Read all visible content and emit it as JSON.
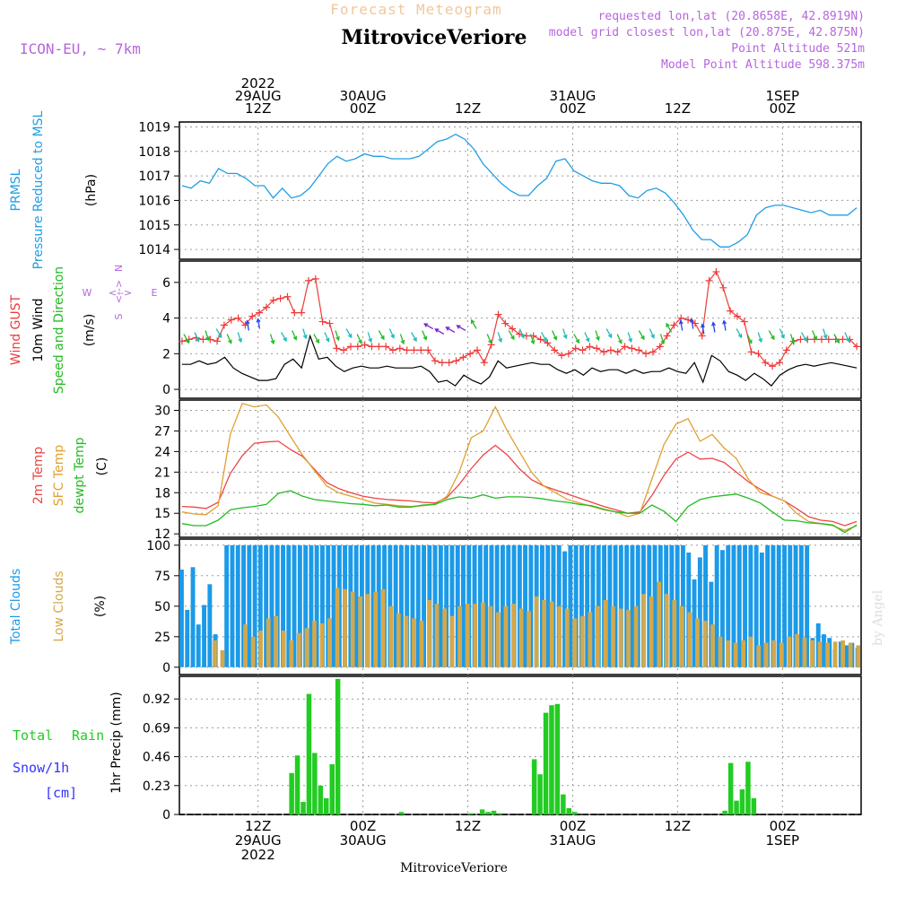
{
  "header": {
    "title": "Forecast Meteogram",
    "location": "MitroviceVeriore",
    "model": "ICON-EU, ~ 7km",
    "requested": "requested lon,lat (20.8658E, 42.8919N)",
    "closest": "model grid closest lon,lat (20.875E, 42.875N)",
    "point_alt": "Point Altitude 521m",
    "model_alt": "Model Point Altitude 598.375m",
    "footer_location": "MitroviceVeriore",
    "watermark": "by Angel"
  },
  "colors": {
    "pressure": "#1f9fe5",
    "gust": "#ee3a3a",
    "wind": "#000000",
    "direction": "#22bb22",
    "temp2m": "#ee4444",
    "sfc": "#e0a030",
    "dewpt": "#22bb22",
    "total_cloud": "#1b9ae8",
    "low_cloud": "#d4a84a",
    "rain": "#22cc22",
    "title": "#f0c89a",
    "meta": "#b666dd",
    "snow_label": "#3333ff"
  },
  "time_axis": {
    "top_labels": [
      {
        "t": 9,
        "lines": [
          "2022",
          "29AUG",
          "12Z"
        ]
      },
      {
        "t": 21,
        "lines": [
          "30AUG",
          "00Z"
        ]
      },
      {
        "t": 33,
        "lines": [
          "12Z"
        ]
      },
      {
        "t": 45,
        "lines": [
          "31AUG",
          "00Z"
        ]
      },
      {
        "t": 57,
        "lines": [
          "12Z"
        ]
      },
      {
        "t": 69,
        "lines": [
          "1SEP",
          "00Z"
        ]
      }
    ],
    "bottom_labels": [
      {
        "t": 9,
        "lines": [
          "12Z",
          "29AUG",
          "2022"
        ]
      },
      {
        "t": 21,
        "lines": [
          "00Z",
          "30AUG"
        ]
      },
      {
        "t": 33,
        "lines": [
          "12Z"
        ]
      },
      {
        "t": 45,
        "lines": [
          "00Z",
          "31AUG"
        ]
      },
      {
        "t": 57,
        "lines": [
          "12Z"
        ]
      },
      {
        "t": 69,
        "lines": [
          "00Z",
          "1SEP"
        ]
      }
    ]
  },
  "panels": {
    "pressure": {
      "labels": [
        "PRMSL",
        "Pressure Reduced to MSL"
      ],
      "unit": "(hPa)"
    },
    "wind": {
      "labels": [
        "Wind GUST",
        "10m Wind",
        "Speed and Direction"
      ],
      "unit": "(m/s)",
      "compass": {
        "n": "N",
        "s": "S",
        "w": "W",
        "e": "E"
      }
    },
    "temp": {
      "labels": [
        "2m Temp",
        "SFC Temp",
        "dewpt Temp"
      ],
      "unit": "(C)"
    },
    "cloud": {
      "labels": [
        "Total Clouds",
        "Low Clouds"
      ],
      "unit": "(%)"
    },
    "precip": {
      "labels": [
        "Total",
        "Rain",
        "Snow/1h",
        "[cm]"
      ],
      "unit": "1hr Precip (mm)"
    }
  },
  "chart_data": [
    {
      "type": "line",
      "name": "pressure",
      "ylim": [
        1013.6,
        1019.2
      ],
      "yticks": [
        1014,
        1015,
        1016,
        1017,
        1018,
        1019
      ],
      "ylabel": "Pressure Reduced to MSL (hPa)",
      "series": [
        {
          "name": "PRMSL",
          "values": [
            1016.6,
            1016.5,
            1016.8,
            1016.7,
            1017.3,
            1017.1,
            1017.1,
            1016.9,
            1016.6,
            1016.6,
            1016.1,
            1016.5,
            1016.1,
            1016.2,
            1016.5,
            1017.0,
            1017.5,
            1017.8,
            1017.6,
            1017.7,
            1017.9,
            1017.8,
            1017.8,
            1017.7,
            1017.7,
            1017.7,
            1017.8,
            1018.1,
            1018.4,
            1018.5,
            1018.7,
            1018.5,
            1018.1,
            1017.5,
            1017.1,
            1016.7,
            1016.4,
            1016.2,
            1016.2,
            1016.6,
            1016.9,
            1017.6,
            1017.7,
            1017.2,
            1017.0,
            1016.8,
            1016.7,
            1016.7,
            1016.6,
            1016.2,
            1016.1,
            1016.4,
            1016.5,
            1016.3,
            1015.9,
            1015.4,
            1014.8,
            1014.4,
            1014.4,
            1014.1,
            1014.1,
            1014.3,
            1014.6,
            1015.4,
            1015.7,
            1015.8,
            1015.8,
            1015.7,
            1015.6,
            1015.5,
            1015.6,
            1015.4,
            1015.4,
            1015.4,
            1015.7
          ]
        }
      ]
    },
    {
      "type": "line",
      "name": "wind",
      "ylim": [
        -0.5,
        7.2
      ],
      "yticks": [
        0,
        2,
        4,
        6
      ],
      "ylabel": "(m/s)",
      "series": [
        {
          "name": "Wind GUST",
          "values": [
            2.7,
            2.8,
            2.9,
            2.8,
            2.8,
            2.7,
            3.6,
            3.9,
            4.0,
            3.6,
            4.1,
            4.3,
            4.6,
            5.0,
            5.1,
            5.2,
            4.3,
            4.3,
            6.1,
            6.2,
            3.8,
            3.7,
            2.3,
            2.2,
            2.4,
            2.4,
            2.5,
            2.4,
            2.4,
            2.4,
            2.2,
            2.3,
            2.2,
            2.2,
            2.2,
            2.2,
            1.6,
            1.5,
            1.5,
            1.6,
            1.8,
            2.0,
            2.2,
            1.5,
            2.5,
            4.2,
            3.7,
            3.4,
            3.1,
            3.0,
            3.0,
            2.8,
            2.6,
            2.2,
            1.9,
            2.0,
            2.3,
            2.2,
            2.4,
            2.3,
            2.1,
            2.2,
            2.1,
            2.4,
            2.3,
            2.2,
            2.0,
            2.1,
            2.4,
            3.0,
            3.6,
            4.0,
            3.9,
            3.7,
            3.0,
            6.1,
            6.6,
            5.7,
            4.4,
            4.1,
            3.8,
            2.1,
            2.0,
            1.5,
            1.3,
            1.5,
            2.2,
            2.7,
            2.8,
            2.8,
            2.8,
            2.8,
            2.8,
            2.8,
            2.8,
            2.8,
            2.4
          ]
        },
        {
          "name": "10m Wind",
          "values": [
            1.4,
            1.4,
            1.6,
            1.4,
            1.5,
            1.8,
            1.2,
            0.9,
            0.7,
            0.5,
            0.5,
            0.6,
            1.4,
            1.7,
            1.2,
            3.0,
            1.7,
            1.8,
            1.3,
            1.0,
            1.2,
            1.3,
            1.2,
            1.2,
            1.3,
            1.2,
            1.2,
            1.2,
            1.3,
            1.0,
            0.4,
            0.5,
            0.2,
            0.8,
            0.5,
            0.3,
            0.7,
            1.6,
            1.2,
            1.3,
            1.4,
            1.5,
            1.4,
            1.4,
            1.1,
            0.9,
            1.1,
            0.8,
            1.2,
            1.0,
            1.1,
            1.1,
            0.9,
            1.1,
            0.9,
            1.0,
            1.0,
            1.2,
            1.0,
            0.9,
            1.5,
            0.4,
            1.9,
            1.6,
            1.0,
            0.8,
            0.5,
            0.9,
            0.6,
            0.2,
            0.8,
            1.1,
            1.3,
            1.4,
            1.3,
            1.4,
            1.5,
            1.4,
            1.3,
            1.2
          ]
        }
      ]
    },
    {
      "type": "line",
      "name": "temperature",
      "ylim": [
        11.5,
        31.5
      ],
      "yticks": [
        12,
        15,
        18,
        21,
        24,
        27,
        30
      ],
      "ylabel": "(C)",
      "series": [
        {
          "name": "2m Temp",
          "values": [
            16.0,
            15.9,
            15.7,
            16.6,
            20.8,
            23.4,
            25.2,
            25.4,
            25.5,
            24.3,
            23.3,
            21.4,
            19.5,
            18.6,
            18.0,
            17.5,
            17.2,
            17.0,
            16.9,
            16.8,
            16.6,
            16.5,
            17.3,
            19.2,
            21.5,
            23.5,
            24.9,
            23.5,
            21.5,
            19.9,
            19.0,
            18.4,
            17.8,
            17.2,
            16.6,
            16.0,
            15.5,
            15.0,
            15.2,
            17.6,
            20.5,
            22.9,
            23.9,
            22.9,
            23.0,
            22.4,
            21.0,
            19.6,
            18.5,
            17.5,
            16.8,
            15.7,
            14.5,
            14.0,
            13.8,
            13.2,
            13.8
          ]
        },
        {
          "name": "SFC Temp",
          "values": [
            15.2,
            14.9,
            14.8,
            16.1,
            26.5,
            31.0,
            30.5,
            30.8,
            29.0,
            26.2,
            23.5,
            21.2,
            19.0,
            18.0,
            17.5,
            17.0,
            16.5,
            16.3,
            16.1,
            16.0,
            16.1,
            16.3,
            17.5,
            21.0,
            26.0,
            27.0,
            30.5,
            27.0,
            24.0,
            21.0,
            19.0,
            18.0,
            17.0,
            16.5,
            16.0,
            15.5,
            15.2,
            14.5,
            15.0,
            20.0,
            25.0,
            28.0,
            28.8,
            25.5,
            26.5,
            24.5,
            23.0,
            20.0,
            18.0,
            17.5,
            16.8,
            15.0,
            13.8,
            13.5,
            13.2,
            12.5,
            13.2
          ]
        },
        {
          "name": "dewpt Temp",
          "values": [
            13.5,
            13.2,
            13.2,
            14.0,
            15.5,
            15.8,
            16.0,
            16.3,
            17.9,
            18.3,
            17.5,
            17.0,
            16.8,
            16.6,
            16.4,
            16.3,
            16.1,
            16.2,
            15.9,
            15.9,
            16.2,
            16.3,
            17.0,
            17.4,
            17.2,
            17.7,
            17.2,
            17.4,
            17.4,
            17.3,
            17.1,
            16.8,
            16.6,
            16.3,
            16.1,
            15.6,
            15.2,
            15.0,
            15.0,
            16.2,
            15.3,
            13.8,
            16.0,
            17.0,
            17.4,
            17.6,
            17.8,
            17.2,
            16.5,
            15.2,
            14.0,
            13.9,
            13.6,
            13.5,
            13.3,
            12.2,
            13.3
          ]
        }
      ]
    },
    {
      "type": "bar",
      "name": "clouds",
      "ylim": [
        -6,
        105
      ],
      "yticks": [
        0,
        25,
        50,
        75,
        100
      ],
      "ylabel": "(%)",
      "series": [
        {
          "name": "Total Clouds",
          "values": [
            80,
            47,
            82,
            35,
            51,
            68,
            27,
            0,
            100,
            100,
            100,
            100,
            100,
            100,
            100,
            100,
            100,
            100,
            100,
            100,
            100,
            100,
            100,
            100,
            100,
            100,
            100,
            100,
            100,
            100,
            100,
            100,
            100,
            100,
            100,
            100,
            100,
            100,
            100,
            100,
            100,
            100,
            100,
            100,
            100,
            100,
            100,
            100,
            100,
            100,
            100,
            100,
            100,
            100,
            100,
            100,
            100,
            100,
            100,
            100,
            100,
            100,
            100,
            100,
            100,
            100,
            100,
            100,
            95,
            100,
            100,
            100,
            100,
            100,
            100,
            100,
            100,
            100,
            100,
            100,
            100,
            100,
            100,
            100,
            100,
            100,
            100,
            100,
            100,
            100,
            94,
            72,
            90,
            100,
            70,
            100,
            96,
            100,
            100,
            100,
            100,
            100,
            100,
            94,
            100,
            100,
            100,
            100,
            100,
            100,
            100,
            100,
            24,
            36,
            27,
            24,
            15,
            21,
            18,
            20,
            16
          ]
        },
        {
          "name": "Low Clouds",
          "values": [
            0,
            0,
            0,
            0,
            22,
            14,
            0,
            0,
            35,
            25,
            30,
            40,
            42,
            30,
            22,
            28,
            32,
            38,
            36,
            40,
            65,
            64,
            62,
            58,
            60,
            62,
            64,
            50,
            44,
            42,
            40,
            38,
            55,
            52,
            48,
            42,
            50,
            52,
            52,
            53,
            50,
            45,
            50,
            52,
            48,
            46,
            58,
            55,
            54,
            50,
            48,
            40,
            42,
            45,
            50,
            55,
            50,
            48,
            47,
            50,
            60,
            58,
            70,
            60,
            55,
            50,
            45,
            40,
            38,
            35,
            25,
            22,
            20,
            22,
            25,
            18,
            20,
            22,
            20,
            25,
            27,
            24,
            22,
            21,
            20,
            21,
            22,
            20,
            18
          ]
        }
      ]
    },
    {
      "type": "bar",
      "name": "precipitation",
      "ylim": [
        0,
        1.1
      ],
      "yticks": [
        0,
        0.23,
        0.46,
        0.69,
        0.92
      ],
      "ylabel": "1hr Precip (mm)",
      "series": [
        {
          "name": "Total Rain",
          "values": [
            0,
            0,
            0,
            0,
            0,
            0,
            0,
            0,
            0,
            0,
            0,
            0,
            0,
            0,
            0,
            0,
            0,
            0,
            0,
            0.33,
            0.47,
            0.1,
            0.96,
            0.49,
            0.23,
            0.13,
            0.4,
            1.08,
            0,
            0,
            0,
            0,
            0,
            0,
            0,
            0,
            0,
            0,
            0.02,
            0,
            0,
            0,
            0,
            0,
            0,
            0,
            0,
            0,
            0,
            0,
            0.01,
            0,
            0.04,
            0.02,
            0.03,
            0.01,
            0,
            0,
            0,
            0,
            0,
            0.44,
            0.32,
            0.81,
            0.87,
            0.88,
            0.16,
            0.05,
            0.02,
            0,
            0,
            0,
            0,
            0,
            0,
            0,
            0,
            0,
            0,
            0,
            0,
            0,
            0,
            0,
            0,
            0,
            0,
            0,
            0,
            0,
            0,
            0,
            0,
            0,
            0.03,
            0.41,
            0.11,
            0.2,
            0.42,
            0.13,
            0,
            0,
            0,
            0,
            0,
            0,
            0,
            0,
            0,
            0,
            0,
            0,
            0,
            0,
            0,
            0,
            0,
            0
          ]
        }
      ]
    }
  ]
}
